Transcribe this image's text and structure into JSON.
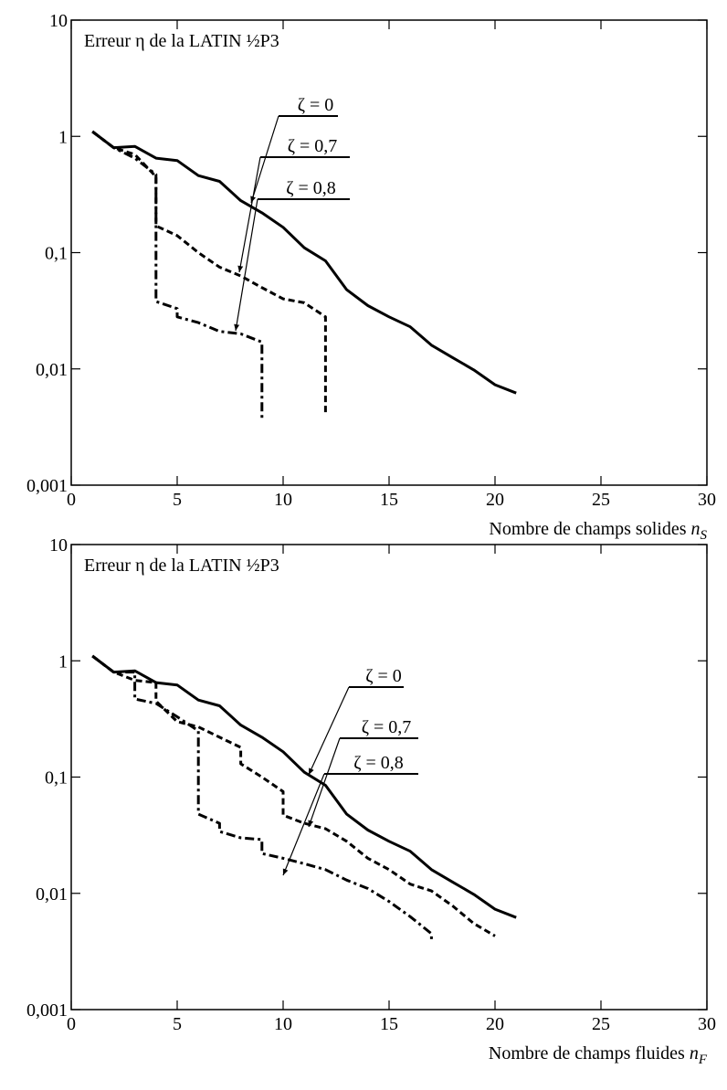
{
  "chart_data": [
    {
      "type": "line",
      "title": "Erreur η de la LATIN ½P3",
      "xlabel": "Nombre de champs solides",
      "xlabel_var": "n",
      "xlabel_sub": "S",
      "xlim": [
        0,
        30
      ],
      "xticks": [
        0,
        5,
        10,
        15,
        20,
        25,
        30
      ],
      "ylim": [
        0.001,
        10
      ],
      "log_y": true,
      "yticks": [
        {
          "value": 0.001,
          "label": "0,001"
        },
        {
          "value": 0.01,
          "label": "0,01"
        },
        {
          "value": 0.1,
          "label": "0,1"
        },
        1,
        10
      ],
      "series": [
        {
          "name": "ζ = 0",
          "color": "#000000",
          "dash": "solid",
          "x": [
            1,
            2,
            3,
            4,
            5,
            6,
            7,
            8,
            9,
            10,
            11,
            12,
            13,
            14,
            15,
            16,
            17,
            18,
            19,
            20,
            21
          ],
          "values": [
            1.1,
            0.8,
            0.82,
            0.65,
            0.62,
            0.46,
            0.41,
            0.28,
            0.22,
            0.165,
            0.11,
            0.085,
            0.048,
            0.035,
            0.028,
            0.023,
            0.016,
            0.0125,
            0.0098,
            0.0073,
            0.0062
          ]
        },
        {
          "name": "ζ = 0,7",
          "color": "#000000",
          "dash": "dashed",
          "x": [
            1,
            2,
            3,
            4,
            4,
            5,
            6,
            7,
            8,
            9,
            10,
            11,
            12,
            12
          ],
          "values": [
            1.1,
            0.8,
            0.7,
            0.45,
            0.17,
            0.14,
            0.1,
            0.075,
            0.063,
            0.05,
            0.04,
            0.037,
            0.028,
            0.0042
          ]
        },
        {
          "name": "ζ = 0,8",
          "color": "#000000",
          "dash": "dashdot",
          "x": [
            1,
            2,
            3,
            4,
            4,
            5,
            5,
            6,
            7,
            8,
            9,
            9
          ],
          "values": [
            1.1,
            0.8,
            0.65,
            0.47,
            0.038,
            0.033,
            0.028,
            0.025,
            0.021,
            0.02,
            0.017,
            0.0037
          ]
        }
      ]
    },
    {
      "type": "line",
      "title": "Erreur η de la LATIN ½P3",
      "xlabel": "Nombre de champs fluides",
      "xlabel_var": "n",
      "xlabel_sub": "F",
      "xlim": [
        0,
        30
      ],
      "xticks": [
        0,
        5,
        10,
        15,
        20,
        25,
        30
      ],
      "ylim": [
        0.001,
        10
      ],
      "log_y": true,
      "yticks": [
        {
          "value": 0.001,
          "label": "0,001"
        },
        {
          "value": 0.01,
          "label": "0,01"
        },
        {
          "value": 0.1,
          "label": "0,1"
        },
        1,
        10
      ],
      "series": [
        {
          "name": "ζ = 0",
          "color": "#000000",
          "dash": "solid",
          "x": [
            1,
            2,
            3,
            4,
            5,
            6,
            7,
            8,
            9,
            10,
            11,
            12,
            13,
            14,
            15,
            16,
            17,
            18,
            19,
            20,
            21
          ],
          "values": [
            1.1,
            0.8,
            0.82,
            0.65,
            0.62,
            0.46,
            0.41,
            0.28,
            0.22,
            0.165,
            0.11,
            0.085,
            0.048,
            0.035,
            0.028,
            0.023,
            0.016,
            0.0125,
            0.0098,
            0.0073,
            0.0062
          ]
        },
        {
          "name": "ζ = 0,7",
          "color": "#000000",
          "dash": "dashed",
          "x": [
            1,
            2,
            3,
            4,
            4,
            5,
            6,
            7,
            8,
            8,
            9,
            10,
            10,
            11,
            12,
            13,
            14,
            15,
            16,
            17,
            18,
            19,
            20
          ],
          "values": [
            1.1,
            0.8,
            0.68,
            0.65,
            0.45,
            0.3,
            0.27,
            0.22,
            0.18,
            0.13,
            0.1,
            0.075,
            0.047,
            0.04,
            0.036,
            0.028,
            0.02,
            0.016,
            0.012,
            0.0105,
            0.0078,
            0.0055,
            0.0043
          ]
        },
        {
          "name": "ζ = 0,8",
          "color": "#000000",
          "dash": "dashdot",
          "x": [
            1,
            2,
            3,
            3,
            4,
            5,
            6,
            6,
            7,
            7,
            8,
            9,
            9,
            10,
            11,
            12,
            13,
            14,
            15,
            16,
            17,
            17
          ],
          "values": [
            1.1,
            0.8,
            0.8,
            0.47,
            0.43,
            0.33,
            0.25,
            0.048,
            0.04,
            0.034,
            0.03,
            0.029,
            0.022,
            0.02,
            0.018,
            0.016,
            0.013,
            0.011,
            0.0085,
            0.0063,
            0.0045,
            0.0038
          ]
        }
      ]
    }
  ]
}
